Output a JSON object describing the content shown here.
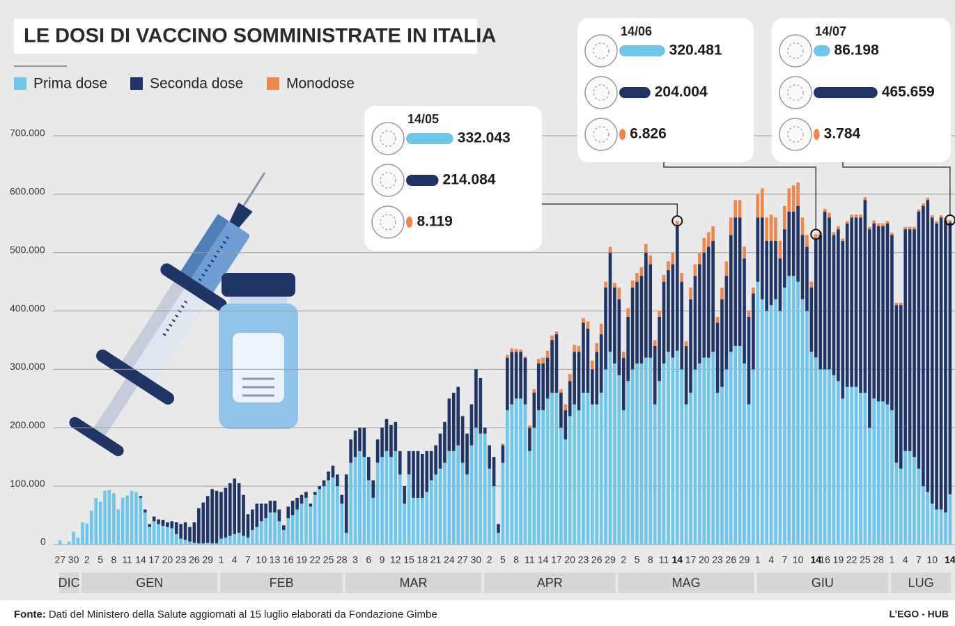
{
  "chart_data": {
    "type": "stacked-bar",
    "title": "LE DOSI DI VACCINO SOMMINISTRATE IN ITALIA",
    "categories": [
      "27",
      null,
      null,
      "30",
      null,
      null,
      "2",
      null,
      null,
      "5",
      null,
      null,
      "8",
      null,
      null,
      "11",
      null,
      null,
      "14",
      null,
      null,
      "17",
      null,
      null,
      "20",
      null,
      null,
      "23",
      null,
      null,
      "26",
      null,
      null,
      "29",
      null,
      null,
      "1",
      null,
      null,
      "4",
      null,
      null,
      "7",
      null,
      null,
      "10",
      null,
      null,
      "13",
      null,
      null,
      "16",
      null,
      null,
      "19",
      null,
      null,
      "22",
      null,
      null,
      "25",
      null,
      null,
      "28",
      null,
      null,
      "3",
      null,
      null,
      "6",
      null,
      null,
      "9",
      null,
      null,
      "12",
      null,
      null,
      "15",
      null,
      null,
      "18",
      null,
      null,
      "21",
      null,
      null,
      "24",
      null,
      null,
      "27",
      null,
      null,
      "30",
      null,
      null,
      "2",
      null,
      null,
      "5",
      null,
      null,
      "8",
      null,
      null,
      "11",
      null,
      null,
      "14",
      null,
      null,
      "17",
      null,
      null,
      "20",
      null,
      null,
      "23",
      null,
      null,
      "26",
      null,
      null,
      "29",
      null,
      null,
      "2",
      null,
      null,
      "5",
      null,
      null,
      "8",
      null,
      null,
      "11",
      null,
      null,
      "14",
      null,
      null,
      "17",
      null,
      null,
      "20",
      null,
      null,
      "23",
      null,
      null,
      "26",
      null,
      null,
      "29",
      null,
      null,
      "1",
      null,
      null,
      "4",
      null,
      null,
      "7",
      null,
      null,
      "10",
      null,
      null,
      null,
      "14",
      null,
      "16",
      null,
      null,
      "19",
      null,
      null,
      "22",
      null,
      null,
      "25",
      null,
      null,
      "28",
      null,
      null,
      "1",
      null,
      null,
      "4",
      null,
      null,
      "7",
      null,
      null,
      "10",
      null,
      null,
      null,
      "14"
    ],
    "months": [
      "DIC",
      "GEN",
      "FEB",
      "MAR",
      "APR",
      "MAG",
      "GIU",
      "LUG"
    ],
    "series": [
      {
        "name": "Prima dose",
        "color": "#6ec6ea",
        "values": [
          7000,
          1000,
          5000,
          22000,
          12000,
          38000,
          36000,
          58000,
          80000,
          73000,
          92000,
          93000,
          88000,
          60000,
          80000,
          84000,
          92000,
          90000,
          80000,
          55000,
          30000,
          40000,
          35000,
          32000,
          30000,
          28000,
          18000,
          10000,
          8000,
          5000,
          3000,
          2000,
          2000,
          3000,
          2000,
          2000,
          10000,
          12000,
          15000,
          18000,
          20000,
          15000,
          12000,
          25000,
          30000,
          40000,
          45000,
          55000,
          55000,
          40000,
          25000,
          45000,
          50000,
          60000,
          70000,
          80000,
          65000,
          85000,
          95000,
          100000,
          110000,
          115000,
          100000,
          70000,
          20000,
          140000,
          150000,
          160000,
          150000,
          110000,
          80000,
          140000,
          150000,
          160000,
          150000,
          160000,
          120000,
          70000,
          120000,
          80000,
          80000,
          80000,
          90000,
          110000,
          120000,
          130000,
          140000,
          160000,
          160000,
          170000,
          140000,
          120000,
          170000,
          200000,
          190000,
          190000,
          130000,
          100000,
          20000,
          140000,
          230000,
          240000,
          250000,
          250000,
          240000,
          160000,
          200000,
          230000,
          230000,
          250000,
          260000,
          260000,
          200000,
          180000,
          220000,
          240000,
          230000,
          260000,
          260000,
          240000,
          240000,
          260000,
          300000,
          330000,
          310000,
          290000,
          230000,
          280000,
          300000,
          310000,
          310000,
          320000,
          320000,
          240000,
          280000,
          310000,
          330000,
          320000,
          332043,
          300000,
          240000,
          260000,
          300000,
          310000,
          320000,
          320000,
          330000,
          260000,
          270000,
          300000,
          330000,
          340000,
          340000,
          310000,
          240000,
          300000,
          450000,
          420000,
          400000,
          410000,
          420000,
          400000,
          440000,
          460000,
          460000,
          450000,
          420000,
          400000,
          330000,
          320481,
          300000,
          300000,
          300000,
          290000,
          280000,
          250000,
          270000,
          270000,
          270000,
          260000,
          260000,
          200000,
          250000,
          245000,
          245000,
          240000,
          230000,
          140000,
          130000,
          160000,
          160000,
          150000,
          130000,
          100000,
          90000,
          70000,
          60000,
          60000,
          55000,
          86198
        ]
      },
      {
        "name": "Seconda dose",
        "color": "#1f3566",
        "values": [
          0,
          0,
          0,
          0,
          0,
          0,
          0,
          0,
          0,
          0,
          0,
          0,
          0,
          0,
          0,
          0,
          0,
          0,
          3000,
          5000,
          5000,
          8000,
          8000,
          10000,
          8000,
          12000,
          20000,
          25000,
          30000,
          25000,
          35000,
          60000,
          70000,
          80000,
          93000,
          90000,
          80000,
          85000,
          90000,
          95000,
          85000,
          70000,
          40000,
          35000,
          40000,
          30000,
          25000,
          20000,
          20000,
          20000,
          8000,
          20000,
          25000,
          20000,
          15000,
          10000,
          5000,
          5000,
          5000,
          10000,
          15000,
          20000,
          20000,
          15000,
          100000,
          40000,
          45000,
          40000,
          50000,
          40000,
          30000,
          40000,
          50000,
          55000,
          55000,
          50000,
          40000,
          30000,
          40000,
          80000,
          80000,
          75000,
          70000,
          50000,
          50000,
          60000,
          70000,
          90000,
          100000,
          100000,
          80000,
          70000,
          70000,
          100000,
          95000,
          10000,
          40000,
          50000,
          15000,
          30000,
          90000,
          90000,
          80000,
          80000,
          80000,
          40000,
          60000,
          80000,
          80000,
          70000,
          90000,
          100000,
          60000,
          50000,
          60000,
          90000,
          100000,
          120000,
          110000,
          60000,
          90000,
          100000,
          140000,
          170000,
          130000,
          130000,
          90000,
          110000,
          140000,
          140000,
          150000,
          180000,
          160000,
          100000,
          110000,
          140000,
          140000,
          160000,
          214084,
          150000,
          100000,
          160000,
          160000,
          170000,
          180000,
          190000,
          190000,
          120000,
          150000,
          160000,
          200000,
          220000,
          220000,
          180000,
          150000,
          130000,
          110000,
          140000,
          120000,
          110000,
          100000,
          90000,
          100000,
          110000,
          110000,
          130000,
          110000,
          110000,
          110000,
          204004,
          230000,
          270000,
          260000,
          240000,
          260000,
          270000,
          280000,
          290000,
          290000,
          300000,
          330000,
          340000,
          300000,
          300000,
          300000,
          310000,
          300000,
          270000,
          280000,
          380000,
          380000,
          390000,
          440000,
          480000,
          500000,
          490000,
          490000,
          500000,
          500000,
          465659
        ]
      },
      {
        "name": "Monodose",
        "color": "#f0874a",
        "values": [
          0,
          0,
          0,
          0,
          0,
          0,
          0,
          0,
          0,
          0,
          0,
          0,
          0,
          0,
          0,
          0,
          0,
          0,
          0,
          0,
          0,
          0,
          0,
          0,
          0,
          0,
          0,
          0,
          0,
          0,
          0,
          0,
          0,
          0,
          0,
          0,
          0,
          0,
          0,
          0,
          0,
          0,
          0,
          0,
          0,
          0,
          0,
          0,
          0,
          0,
          0,
          0,
          0,
          0,
          0,
          0,
          0,
          0,
          0,
          0,
          0,
          0,
          0,
          0,
          0,
          0,
          0,
          0,
          0,
          0,
          0,
          0,
          0,
          0,
          0,
          0,
          0,
          0,
          0,
          0,
          0,
          0,
          0,
          0,
          0,
          0,
          0,
          0,
          0,
          0,
          0,
          0,
          0,
          0,
          0,
          0,
          0,
          0,
          0,
          3000,
          5000,
          6000,
          5000,
          4000,
          2000,
          4000,
          6000,
          8000,
          10000,
          12000,
          8000,
          5000,
          6000,
          10000,
          12000,
          12000,
          10000,
          8000,
          12000,
          15000,
          15000,
          18000,
          10000,
          10000,
          8000,
          20000,
          10000,
          15000,
          12000,
          15000,
          15000,
          15000,
          15000,
          10000,
          10000,
          12000,
          15000,
          20000,
          8119,
          15000,
          8000,
          20000,
          20000,
          20000,
          25000,
          25000,
          25000,
          10000,
          20000,
          25000,
          30000,
          30000,
          30000,
          20000,
          10000,
          10000,
          40000,
          50000,
          40000,
          45000,
          40000,
          30000,
          40000,
          40000,
          45000,
          40000,
          30000,
          20000,
          10000,
          6826,
          5000,
          5000,
          8000,
          5000,
          5000,
          4000,
          4000,
          5000,
          5000,
          5000,
          5000,
          4000,
          5000,
          5000,
          5000,
          4000,
          4000,
          4000,
          4000,
          4000,
          4000,
          4000,
          4000,
          4000,
          4000,
          4000,
          4000,
          4000,
          4000,
          3784
        ]
      }
    ],
    "callouts": [
      {
        "date": "14/05",
        "values": [
          332043,
          214084,
          8119
        ],
        "value_labels": [
          "332.043",
          "214.084",
          "8.119"
        ]
      },
      {
        "date": "14/06",
        "values": [
          320481,
          204004,
          6826
        ],
        "value_labels": [
          "320.481",
          "204.004",
          "6.826"
        ]
      },
      {
        "date": "14/07",
        "values": [
          86198,
          465659,
          3784
        ],
        "value_labels": [
          "86.198",
          "465.659",
          "3.784"
        ]
      }
    ],
    "ylim": [
      0,
      700000
    ],
    "yticks": [
      0,
      {
        "value": 100000,
        "label": "100.000"
      },
      {
        "value": 200000,
        "label": "200.000"
      },
      {
        "value": 300000,
        "label": "300.000"
      },
      {
        "value": 400000,
        "label": "400.000"
      },
      {
        "value": 500000,
        "label": "500.000"
      },
      {
        "value": 600000,
        "label": "600.000"
      },
      {
        "value": 700000,
        "label": "700.000"
      }
    ],
    "grid": true,
    "source_label": "Fonte:",
    "source": "Dati del Ministero della Salute aggiornati al 15 luglio elaborati da Fondazione Gimbe",
    "credit": "L’EGO - HUB"
  }
}
